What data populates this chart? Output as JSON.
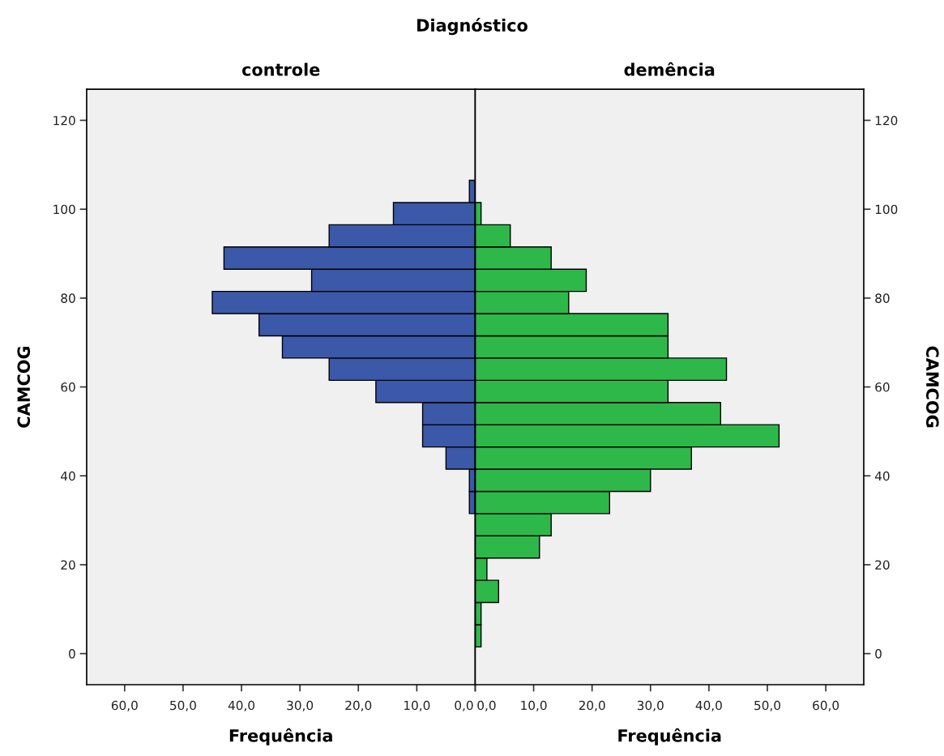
{
  "chart_data": [
    {
      "type": "histogram",
      "orientation": "horizontal",
      "title": "controle",
      "xlabel": "Frequência",
      "ylabel": "CAMCOG",
      "annotations": [
        "Diagnóstico"
      ],
      "color": "#3c58a8",
      "bins": [
        31.5,
        36.5,
        41.5,
        46.5,
        51.5,
        56.5,
        61.5,
        66.5,
        71.5,
        76.5,
        81.5,
        86.5,
        91.5,
        96.5,
        101.5,
        106.5
      ],
      "values": [
        1,
        1,
        5,
        9,
        9,
        17,
        25,
        33,
        37,
        45,
        28,
        43,
        25,
        14,
        1
      ],
      "xlim": [
        66.5,
        0
      ],
      "xticks": [
        {
          "value": 60,
          "label": "60,0"
        },
        {
          "value": 50,
          "label": "50,0"
        },
        {
          "value": 40,
          "label": "40,0"
        },
        {
          "value": 30,
          "label": "30,0"
        },
        {
          "value": 20,
          "label": "20,0"
        },
        {
          "value": 10,
          "label": "10,0"
        },
        {
          "value": 0,
          "label": "0,0"
        }
      ],
      "ylim": [
        -7,
        127
      ],
      "yticks": [
        0,
        20,
        40,
        60,
        80,
        100,
        120
      ],
      "grid": false
    },
    {
      "type": "histogram",
      "orientation": "horizontal",
      "title": "demência",
      "xlabel": "Frequência",
      "ylabel": "CAMCOG",
      "color": "#2eb84a",
      "bins": [
        1.5,
        6.5,
        11.5,
        16.5,
        21.5,
        26.5,
        31.5,
        36.5,
        41.5,
        46.5,
        51.5,
        56.5,
        61.5,
        66.5,
        71.5,
        76.5,
        81.5,
        86.5,
        91.5,
        96.5,
        101.5
      ],
      "values": [
        1,
        1,
        4,
        2,
        11,
        13,
        23,
        30,
        37,
        52,
        42,
        33,
        43,
        33,
        33,
        16,
        19,
        13,
        6,
        1
      ],
      "xlim": [
        0,
        66.5
      ],
      "xticks": [
        {
          "value": 0,
          "label": "0,0"
        },
        {
          "value": 10,
          "label": "10,0"
        },
        {
          "value": 20,
          "label": "20,0"
        },
        {
          "value": 30,
          "label": "30,0"
        },
        {
          "value": 40,
          "label": "40,0"
        },
        {
          "value": 50,
          "label": "50,0"
        },
        {
          "value": 60,
          "label": "60,0"
        }
      ],
      "ylim": [
        -7,
        127
      ],
      "yticks": [
        0,
        20,
        40,
        60,
        80,
        100,
        120
      ],
      "grid": false
    }
  ]
}
